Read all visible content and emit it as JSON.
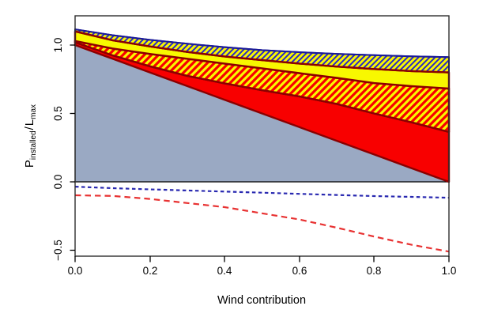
{
  "figure": {
    "background": "#ffffff",
    "ylabel_parts": {
      "p": "P",
      "p_sub": "installed",
      "slash": "/",
      "l": "L",
      "l_sub": "max"
    }
  },
  "chart_data": {
    "type": "area",
    "title": "",
    "xlabel": "Wind contribution",
    "ylabel": "P_installed / L_max",
    "xlim": [
      0,
      1
    ],
    "ylim": [
      -0.55,
      1.21
    ],
    "grid": false,
    "legend": "none",
    "x_tick_labels": [
      "0.0",
      "0.2",
      "0.4",
      "0.6",
      "0.8",
      "1.0"
    ],
    "x_tick_values": [
      0,
      0.2,
      0.4,
      0.6,
      0.8,
      1.0
    ],
    "y_tick_labels": [
      "1.0",
      "0.5",
      "0.0",
      "−0.5"
    ],
    "y_tick_values": [
      1.0,
      0.5,
      0.0,
      -0.5
    ],
    "x": [
      0,
      0.1,
      0.2,
      0.3,
      0.4,
      0.5,
      0.6,
      0.7,
      0.8,
      0.9,
      1.0
    ],
    "areas": [
      {
        "name": "gray-base",
        "lower": [
          0,
          0,
          0,
          0,
          0,
          0,
          0,
          0,
          0,
          0,
          0
        ],
        "upper": [
          1.0,
          0.9,
          0.8,
          0.7,
          0.6,
          0.5,
          0.4,
          0.3,
          0.2,
          0.1,
          0.0
        ],
        "fill": "#9AA9C3",
        "border": "#000000",
        "border_width": 1.2
      },
      {
        "name": "red-band",
        "lower": [
          1.0,
          0.9,
          0.8,
          0.7,
          0.6,
          0.5,
          0.4,
          0.3,
          0.2,
          0.1,
          0.0
        ],
        "upper": [
          1.02,
          0.925,
          0.845,
          0.775,
          0.72,
          0.67,
          0.625,
          0.57,
          0.5,
          0.435,
          0.365
        ],
        "fill": "#F80000",
        "border": "#8B0000",
        "border_width": 2.4
      },
      {
        "name": "red-hatch-band",
        "lower": [
          1.02,
          0.925,
          0.845,
          0.775,
          0.72,
          0.67,
          0.625,
          0.57,
          0.5,
          0.435,
          0.365
        ],
        "upper": [
          1.03,
          0.975,
          0.935,
          0.9,
          0.865,
          0.83,
          0.795,
          0.76,
          0.722,
          0.7,
          0.682
        ],
        "fill": "#F8F800",
        "border": "#8B0000",
        "border_width": 2.4,
        "hatch": {
          "color": "#F80000",
          "width": 3.2,
          "period": 9
        }
      },
      {
        "name": "yellow-band",
        "lower": [
          1.03,
          0.975,
          0.935,
          0.9,
          0.865,
          0.83,
          0.795,
          0.76,
          0.722,
          0.7,
          0.682
        ],
        "upper": [
          1.1,
          1.035,
          0.99,
          0.95,
          0.917,
          0.89,
          0.865,
          0.843,
          0.825,
          0.81,
          0.8
        ],
        "fill": "#F8F800",
        "border": "#8B0000",
        "border_width": 2.4
      },
      {
        "name": "blue-hatch-band",
        "lower": [
          1.1,
          1.035,
          0.99,
          0.95,
          0.917,
          0.89,
          0.865,
          0.843,
          0.825,
          0.81,
          0.8
        ],
        "upper": [
          1.115,
          1.072,
          1.038,
          1.01,
          0.985,
          0.963,
          0.948,
          0.936,
          0.926,
          0.918,
          0.912
        ],
        "fill": "#F8F800",
        "border": "#1A1A99",
        "border_width": 2,
        "lower_edge_color": "#8B0000",
        "lower_edge_width": 2.4,
        "hatch": {
          "color": "#2828C8",
          "width": 2,
          "period": 7
        }
      }
    ],
    "lines": [
      {
        "name": "blue-dashed",
        "y": [
          -0.035,
          -0.046,
          -0.055,
          -0.063,
          -0.071,
          -0.079,
          -0.088,
          -0.096,
          -0.104,
          -0.11,
          -0.116
        ],
        "color": "#2828B0",
        "dash": "4.5,3.5",
        "width": 2.2
      },
      {
        "name": "red-dashed",
        "y": [
          -0.098,
          -0.103,
          -0.125,
          -0.155,
          -0.185,
          -0.23,
          -0.275,
          -0.335,
          -0.4,
          -0.46,
          -0.51
        ],
        "color": "#E83232",
        "dash": "7.5,5",
        "width": 2.2
      }
    ],
    "axis_color": "#000000"
  }
}
